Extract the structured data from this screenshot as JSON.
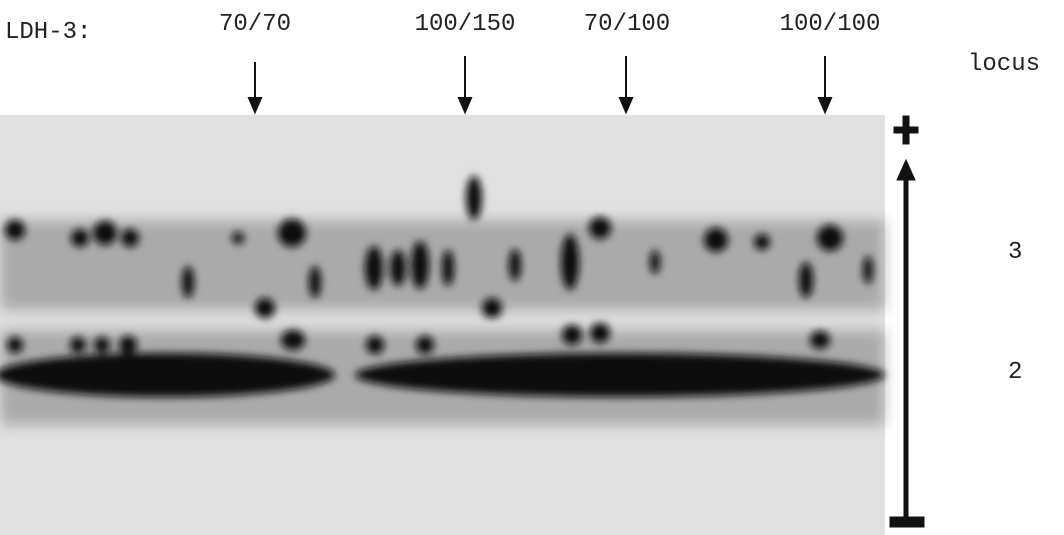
{
  "header": {
    "label": "LDH-3:",
    "genotypes": [
      "70/70",
      "100/150",
      "70/100",
      "100/100"
    ]
  },
  "legend": {
    "title": "locus",
    "loci": [
      "3",
      "2"
    ]
  }
}
